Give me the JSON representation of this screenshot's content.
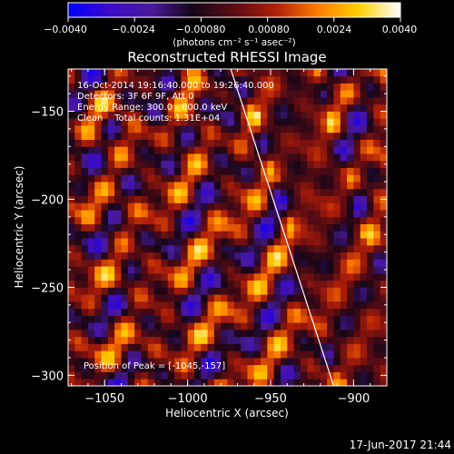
{
  "colorbar": {
    "ticks": [
      "−0.0040",
      "−0.0024",
      "−0.00080",
      "0.00080",
      "0.0024",
      "0.0040"
    ],
    "unit_label": "(photons cm⁻² s⁻¹ asec⁻²)",
    "range": [
      -0.004,
      0.004
    ]
  },
  "title": "Reconstructed RHESSI Image",
  "annotations": {
    "line1": "16-Oct-2014 19:16:40.000 to 19:26:40.000",
    "line2": "Detectors: 3F 6F 9F, Att 0",
    "line3": "Energy Range: 300.0 - 800.0 keV",
    "line4": "Clean    Total counts: 1.31E+04",
    "peak": "Position of Peak = [-1045,-157]"
  },
  "timestamp": "17-Jun-2017 21:44",
  "chart_data": {
    "type": "heatmap",
    "title": "Reconstructed RHESSI Image",
    "xlabel": "Heliocentric X (arcsec)",
    "ylabel": "Heliocentric Y (arcsec)",
    "xlim": [
      -1072,
      -880
    ],
    "ylim": [
      -306,
      -126
    ],
    "x_ticks": [
      -1050,
      -1000,
      -950,
      -900
    ],
    "x_tick_labels": [
      "−1050",
      "−1000",
      "−950",
      "−900"
    ],
    "y_ticks": [
      -150,
      -200,
      -250,
      -300
    ],
    "y_tick_labels": [
      "−150",
      "−200",
      "−250",
      "−300"
    ],
    "value_range": [
      -0.004,
      0.004
    ],
    "colormap": [
      "#0000ff",
      "#3a0ac8",
      "#4b1a9c",
      "#160617",
      "#5a0c14",
      "#b01e08",
      "#ff7a00",
      "#ffd000",
      "#ffffff"
    ],
    "limb_line": [
      [
        -974,
        -126
      ],
      [
        -912,
        -306
      ]
    ],
    "peak_position": [
      -1045,
      -157
    ]
  }
}
